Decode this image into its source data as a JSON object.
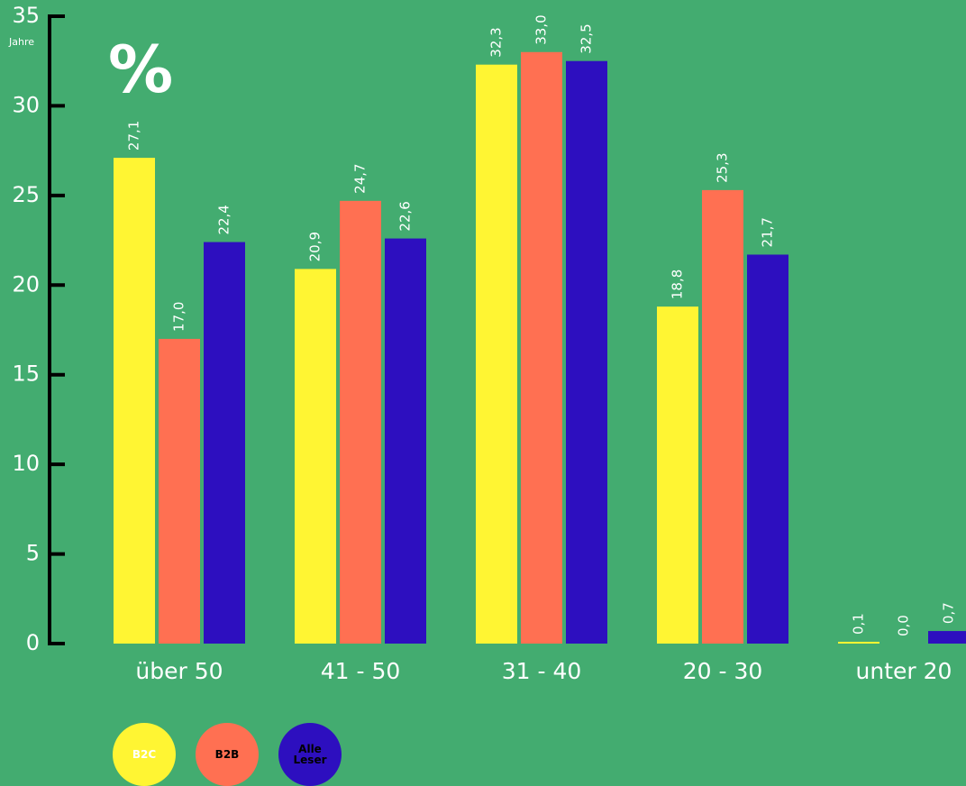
{
  "chart_data": {
    "type": "bar",
    "title": "%",
    "y_axis_note": "Jahre",
    "categories": [
      "über 50",
      "41 - 50",
      "31 - 40",
      "20 - 30",
      "unter 20"
    ],
    "series": [
      {
        "name": "B2C",
        "color": "#fff533",
        "values": [
          27.1,
          20.9,
          32.3,
          18.8,
          0.1
        ],
        "value_labels": [
          "27,1",
          "20,9",
          "32,3",
          "18,8",
          "0,1"
        ]
      },
      {
        "name": "B2B",
        "color": "#ff7052",
        "values": [
          17.0,
          24.7,
          33.0,
          25.3,
          0.0
        ],
        "value_labels": [
          "17,0",
          "24,7",
          "33,0",
          "25,3",
          "0,0"
        ]
      },
      {
        "name": "Alle Leser",
        "color": "#2d0fbf",
        "values": [
          22.4,
          22.6,
          32.5,
          21.7,
          0.7
        ],
        "value_labels": [
          "22,4",
          "22,6",
          "32,5",
          "21,7",
          "0,7"
        ]
      }
    ],
    "ylim": [
      0,
      35
    ],
    "yticks": [
      0,
      5,
      10,
      15,
      20,
      25,
      30,
      35
    ],
    "grid": false
  }
}
